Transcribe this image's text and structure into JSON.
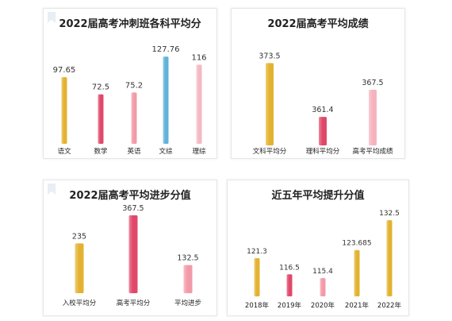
{
  "chart_data": [
    {
      "type": "bar",
      "title": "2022届高考冲刺班各科平均分",
      "categories": [
        "语文",
        "数学",
        "英语",
        "文综",
        "理综"
      ],
      "values": [
        97.65,
        72.5,
        75.2,
        127.76,
        116
      ],
      "value_labels": [
        "97.65",
        "72.5",
        "75.2",
        "127.76",
        "116"
      ],
      "colors": [
        "#e3b230",
        "#e0486a",
        "#f29aa8",
        "#5fb3d8",
        "#f4b9c2"
      ],
      "ylim": [
        0,
        135
      ]
    },
    {
      "type": "bar",
      "title": "2022届高考平均成绩",
      "categories": [
        "文科平均分",
        "理科平均分",
        "高考平均成绩"
      ],
      "values": [
        373.5,
        361.4,
        367.5
      ],
      "value_labels": [
        "373.5",
        "361.4",
        "367.5"
      ],
      "colors": [
        "#e3b230",
        "#e0486a",
        "#f6b3bf"
      ],
      "ylim": [
        355,
        375
      ]
    },
    {
      "type": "bar",
      "title": "2022届高考平均进步分值",
      "categories": [
        "入校平均分",
        "高考平均分",
        "平均进步"
      ],
      "values": [
        235,
        367.5,
        132.5
      ],
      "value_labels": [
        "235",
        "367.5",
        "132.5"
      ],
      "colors": [
        "#e3b230",
        "#e0486a",
        "#f29aa8"
      ],
      "ylim": [
        0,
        375
      ]
    },
    {
      "type": "bar",
      "title": "近五年平均提升分值",
      "categories": [
        "2018年",
        "2019年",
        "2020年",
        "2021年",
        "2022年"
      ],
      "values": [
        121.3,
        116.5,
        115.4,
        123.685,
        132.5
      ],
      "value_labels": [
        "121.3",
        "116.5",
        "115.4",
        "123.685",
        "132.5"
      ],
      "colors": [
        "#e3b230",
        "#e0486a",
        "#f29aa8",
        "#e3b230",
        "#e3b230"
      ],
      "ylim": [
        110,
        133
      ]
    }
  ]
}
